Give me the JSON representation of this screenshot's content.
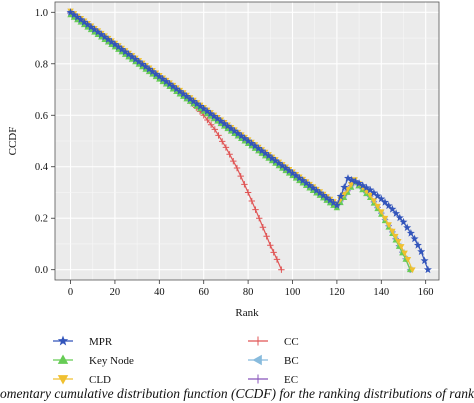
{
  "chart_data": {
    "type": "line",
    "title": "",
    "xlabel": "Rank",
    "ylabel": "CCDF",
    "xlim": [
      -7,
      166
    ],
    "ylim": [
      -0.04,
      1.04
    ],
    "xticks": [
      0,
      20,
      40,
      60,
      80,
      100,
      120,
      140,
      160
    ],
    "yticks": [
      0.0,
      0.2,
      0.4,
      0.6,
      0.8,
      1.0
    ],
    "grid": true,
    "legend_position": "bottom",
    "series": [
      {
        "name": "MPR",
        "color": "#3355bb",
        "marker": "star",
        "x": [
          0,
          20,
          40,
          60,
          80,
          100,
          120,
          125,
          130,
          135,
          140,
          145,
          150,
          155,
          158,
          161
        ],
        "y": [
          1.0,
          0.875,
          0.75,
          0.625,
          0.5,
          0.375,
          0.25,
          0.355,
          0.335,
          0.31,
          0.275,
          0.235,
          0.185,
          0.12,
          0.07,
          0.0
        ]
      },
      {
        "name": "Key Node",
        "color": "#66cc55",
        "marker": "triangle",
        "x": [
          0,
          20,
          40,
          60,
          80,
          100,
          120,
          128,
          135,
          140,
          145,
          148,
          151,
          153
        ],
        "y": [
          0.99,
          0.865,
          0.74,
          0.615,
          0.49,
          0.365,
          0.24,
          0.34,
          0.28,
          0.215,
          0.14,
          0.09,
          0.04,
          0.0
        ]
      },
      {
        "name": "CLD",
        "color": "#f0c030",
        "marker": "triangle-down",
        "x": [
          0,
          20,
          40,
          60,
          80,
          100,
          120,
          128,
          135,
          140,
          145,
          149,
          152,
          154
        ],
        "y": [
          1.005,
          0.88,
          0.755,
          0.63,
          0.505,
          0.38,
          0.255,
          0.35,
          0.29,
          0.225,
          0.15,
          0.09,
          0.04,
          0.0
        ]
      },
      {
        "name": "CC",
        "color": "#e05555",
        "marker": "plus",
        "x": [
          0,
          20,
          40,
          50,
          55,
          60,
          65,
          70,
          75,
          80,
          85,
          90,
          93,
          95
        ],
        "y": [
          0.997,
          0.872,
          0.747,
          0.69,
          0.645,
          0.6,
          0.545,
          0.475,
          0.395,
          0.3,
          0.2,
          0.095,
          0.04,
          0.0
        ]
      },
      {
        "name": "BC",
        "color": "#88bbdd",
        "marker": "triangle-left",
        "x": [
          0,
          20,
          40,
          60,
          80,
          100,
          120,
          128,
          135,
          140,
          145,
          148,
          151,
          153
        ],
        "y": [
          0.995,
          0.87,
          0.745,
          0.62,
          0.495,
          0.37,
          0.245,
          0.343,
          0.283,
          0.218,
          0.145,
          0.092,
          0.042,
          0.0
        ]
      },
      {
        "name": "EC",
        "color": "#8855bb",
        "marker": "plus",
        "x": [
          0,
          20,
          40,
          60,
          80,
          100,
          120,
          128,
          135,
          140,
          145,
          148,
          151,
          153
        ],
        "y": [
          0.998,
          0.873,
          0.748,
          0.623,
          0.498,
          0.373,
          0.248,
          0.346,
          0.286,
          0.22,
          0.147,
          0.094,
          0.043,
          0.0
        ]
      }
    ]
  },
  "caption": "omentary cumulative distribution function (CCDF) for the ranking distributions of rankings"
}
